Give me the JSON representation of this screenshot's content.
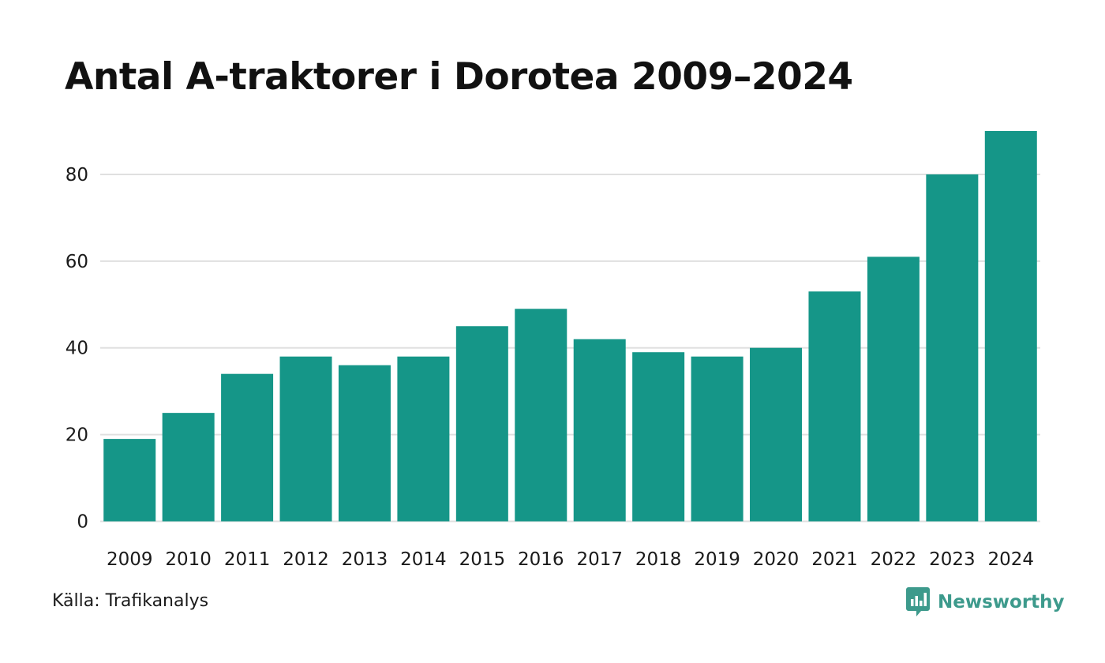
{
  "title": "Antal A-traktorer i Dorotea 2009–2024",
  "source": "Källa: Trafikanalys",
  "brand": {
    "name": "Newsworthy",
    "icon": "newsworthy-logo-icon",
    "color": "#3d9a8c"
  },
  "colors": {
    "bar": "#159688",
    "grid": "#e0e0e0",
    "text": "#1a1a1a"
  },
  "chart_data": {
    "type": "bar",
    "title": "Antal A-traktorer i Dorotea 2009–2024",
    "xlabel": "",
    "ylabel": "",
    "categories": [
      "2009",
      "2010",
      "2011",
      "2012",
      "2013",
      "2014",
      "2015",
      "2016",
      "2017",
      "2018",
      "2019",
      "2020",
      "2021",
      "2022",
      "2023",
      "2024"
    ],
    "values": [
      19,
      25,
      34,
      38,
      36,
      38,
      45,
      49,
      42,
      39,
      38,
      40,
      53,
      61,
      80,
      90
    ],
    "ylim": [
      0,
      90
    ],
    "yticks": [
      0,
      20,
      40,
      60,
      80
    ],
    "grid": true,
    "legend": "none"
  }
}
